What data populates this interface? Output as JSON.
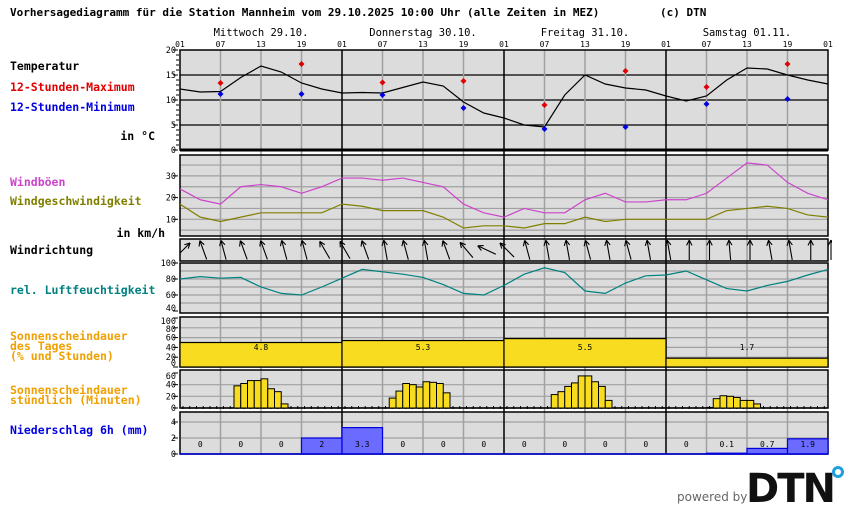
{
  "header": {
    "title": "Vorhersagediagramm für die Station Mannheim vom 29.10.2025 10:00 Uhr (alle Zeiten in MEZ)",
    "copyright": "(c) DTN"
  },
  "labels": {
    "temperatur": "Temperatur",
    "max": "12-Stunden-Maximum",
    "min": "12-Stunden-Minimum",
    "temp_unit": "in °C",
    "gusts": "Windböen",
    "speed": "Windgeschwindigkeit",
    "wind_unit": "in km/h",
    "direction": "Windrichtung",
    "humidity": "rel. Luftfeuchtigkeit",
    "sun_daily_1": "Sonnenscheindauer",
    "sun_daily_2": "des Tages",
    "sun_daily_3": "(% und Stunden)",
    "sun_hourly_1": "Sonnenscheindauer",
    "sun_hourly_2": "stündlich (Minuten)",
    "precip": "Niederschlag 6h (mm)"
  },
  "footer": {
    "powered_by": "powered by",
    "logo": "DTN"
  },
  "colors": {
    "temperature": "#000000",
    "max": "#e00000",
    "min": "#0000e0",
    "gusts": "#cc44cc",
    "speed": "#808000",
    "humidity": "#008080",
    "sunshine": "#f8dc20",
    "sunshine_label": "#f0a000",
    "precip": "#6b6bff",
    "panel_bg": "#dcdcdc",
    "grid": "#a0a0a0",
    "logo_accent": "#1ea0d8"
  },
  "chart_data": {
    "type": "line",
    "days": [
      "Mittwoch 29.10.",
      "Donnerstag 30.10.",
      "Freitag 31.10.",
      "Samstag 01.11."
    ],
    "hour_ticks": [
      "01",
      "07",
      "13",
      "19",
      "01",
      "07",
      "13",
      "19",
      "01",
      "07",
      "13",
      "19",
      "01",
      "07",
      "13",
      "19",
      "01"
    ],
    "x_step_hours": 3,
    "temperature": {
      "ylim": [
        0,
        20
      ],
      "yticks": [
        "20",
        "15",
        "10",
        "5",
        "0"
      ],
      "values": [
        12.2,
        11.6,
        11.7,
        14.5,
        16.8,
        15.6,
        13.4,
        12.2,
        11.4,
        11.5,
        11.4,
        12.5,
        13.6,
        12.8,
        9.6,
        7.4,
        6.4,
        5.0,
        4.6,
        11.0,
        15.0,
        13.2,
        12.4,
        12.0,
        10.8,
        9.8,
        10.8,
        14.0,
        16.4,
        16.2,
        15.0,
        14.0,
        13.2
      ],
      "max_12h": [
        {
          "time": "Mi 07",
          "value": 13.4
        },
        {
          "time": "Mi 19",
          "value": 17.2
        },
        {
          "time": "Do 07",
          "value": 13.5
        },
        {
          "time": "Do 19",
          "value": 13.8
        },
        {
          "time": "Fr 07",
          "value": 9.0
        },
        {
          "time": "Fr 19",
          "value": 15.8
        },
        {
          "time": "Sa 07",
          "value": 12.6
        },
        {
          "time": "Sa 19",
          "value": 17.2
        }
      ],
      "min_12h": [
        {
          "time": "Mi 07",
          "value": 11.2
        },
        {
          "time": "Mi 19",
          "value": 11.2
        },
        {
          "time": "Do 07",
          "value": 11.0
        },
        {
          "time": "Do 19",
          "value": 8.4
        },
        {
          "time": "Fr 07",
          "value": 4.2
        },
        {
          "time": "Fr 19",
          "value": 4.6
        },
        {
          "time": "Sa 07",
          "value": 9.2
        },
        {
          "time": "Sa 19",
          "value": 10.2
        }
      ]
    },
    "wind": {
      "yticks": [
        "30",
        "20",
        "10"
      ],
      "gusts": [
        24,
        19,
        17,
        25,
        26,
        25,
        22,
        25,
        29,
        29,
        28,
        29,
        27,
        25,
        17,
        13,
        11,
        15,
        13,
        13,
        19,
        22,
        18,
        18,
        19,
        19,
        22,
        29,
        36,
        35,
        27,
        22,
        19
      ],
      "speed": [
        17,
        11,
        9,
        11,
        13,
        13,
        13,
        13,
        17,
        16,
        14,
        14,
        14,
        11,
        6,
        7,
        7,
        6,
        8,
        8,
        11,
        9,
        10,
        10,
        10,
        10,
        10,
        14,
        15,
        16,
        15,
        12,
        11
      ]
    },
    "wind_direction_deg": [
      225,
      160,
      165,
      160,
      160,
      165,
      165,
      150,
      150,
      160,
      170,
      165,
      170,
      160,
      140,
      115,
      135,
      165,
      170,
      170,
      165,
      170,
      165,
      170,
      170,
      180,
      180,
      175,
      180,
      170,
      170,
      180,
      180
    ],
    "humidity": {
      "yticks": [
        "100",
        "80",
        "60",
        "40"
      ],
      "values": [
        80,
        83,
        81,
        82,
        70,
        62,
        60,
        70,
        81,
        92,
        89,
        86,
        82,
        73,
        62,
        60,
        72,
        86,
        94,
        88,
        65,
        62,
        75,
        84,
        85,
        90,
        79,
        68,
        65,
        72,
        77,
        85,
        92
      ]
    },
    "sunshine_daily": {
      "yticks": [
        "100",
        "80",
        "60",
        "40",
        "20",
        "0"
      ],
      "percent": [
        50,
        54,
        58,
        18
      ],
      "hours": [
        "4.8",
        "5.3",
        "5.5",
        "1.7"
      ]
    },
    "sunshine_hourly": {
      "yticks": [
        "60",
        "40",
        "20",
        "0"
      ],
      "blocks": [
        {
          "start_hour_index": 8,
          "minutes": [
            38,
            42,
            47,
            47,
            50,
            33,
            28,
            7
          ]
        },
        {
          "start_hour_index": 31,
          "minutes": [
            17,
            29,
            42,
            40,
            36,
            45,
            44,
            42,
            26
          ]
        },
        {
          "start_hour_index": 55,
          "minutes": [
            23,
            28,
            37,
            43,
            55,
            55,
            45,
            37,
            13
          ]
        },
        {
          "start_hour_index": 78,
          "minutes": [
            1,
            16,
            21,
            20,
            18,
            13,
            13,
            7
          ]
        }
      ]
    },
    "precipitation_6h": {
      "yticks": [
        "4",
        "2",
        "0"
      ],
      "values": [
        0,
        0,
        0,
        2,
        3.3,
        0,
        0,
        0,
        0,
        0,
        0,
        0,
        0,
        0.1,
        0.7,
        1.9
      ],
      "labels": [
        "0",
        "0",
        "0",
        "2",
        "3.3",
        "0",
        "0",
        "0",
        "0",
        "0",
        "0",
        "0",
        "0",
        "0.1",
        "0.7",
        "1.9"
      ]
    }
  }
}
